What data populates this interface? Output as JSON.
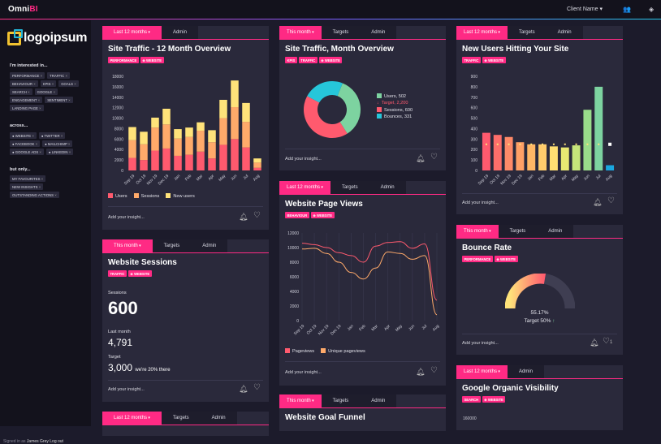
{
  "app": {
    "brand_a": "Omni",
    "brand_b": "BI",
    "client": "Client Name",
    "signed_prefix": "Signed in as",
    "signed_name": "James Grey",
    "logout": "Log out"
  },
  "icons": {
    "caret": "caret-down-icon",
    "users": "users-icon",
    "layers": "layers-icon",
    "bell": "bell-icon",
    "heart": "heart-icon"
  },
  "sidebar": {
    "logo": "logoipsum",
    "interested_heading": "I'm interested in...",
    "interested": [
      "PERFORMANCE",
      "TRAFFIC",
      "BEHAVIOUR",
      "KPIS",
      "GOALS",
      "SEARCH",
      "GOOGLE",
      "ENGAGEMENT",
      "SENTIMENT",
      "LANDING PAGE"
    ],
    "across_heading": "across...",
    "across": [
      "WEBSITE",
      "TWITTER",
      "FACEBOOK",
      "MAILCHIMP",
      "GOOGLE ADS",
      "LINKEDIN"
    ],
    "butonly_heading": "but only...",
    "butonly": [
      "MY FAVOURITES",
      "NEW INSIGHTS",
      "OUTSTANDING ACTIONS"
    ]
  },
  "common": {
    "add_insight": "Add your insight...",
    "tab_targets": "Targets",
    "tab_admin": "Admin",
    "tab_last12": "Last 12 months",
    "tab_thismonth": "This month"
  },
  "colors": {
    "accent": "#ff2a84",
    "bg": "#1c1b2b",
    "card": "#2a293b",
    "red": "#ff5a6e",
    "orange": "#ffaa6a",
    "yellow": "#ffe37a",
    "green": "#7dd3a0",
    "teal": "#26c6da",
    "blue": "#1aa7e0"
  },
  "cards": {
    "traffic12": {
      "title": "Site Traffic - 12 Month Overview",
      "tags": [
        "PERFORMANCE",
        "WEBSITE"
      ],
      "legend": [
        "Users",
        "Sessions",
        "New users"
      ]
    },
    "trafficMonth": {
      "title": "Site Traffic, Month Overview",
      "tags": [
        "KPIS",
        "TRAFFIC",
        "WEBSITE"
      ],
      "legend": [
        "Users, 502",
        "Target, 2,200",
        "Sessions, 600",
        "Bounces, 331"
      ]
    },
    "newUsers": {
      "title": "New Users Hitting Your Site",
      "tags": [
        "TRAFFIC",
        "WEBSITE"
      ]
    },
    "sessions": {
      "title": "Website Sessions",
      "tags": [
        "TRAFFIC",
        "WEBSITE"
      ],
      "sessions_label": "Sessions",
      "sessions_value": "600",
      "last_label": "Last month",
      "last_value": "4,791",
      "target_label": "Target",
      "target_value": "3,000",
      "target_note": "we're 20% there"
    },
    "pageViews": {
      "title": "Website Page Views",
      "tags": [
        "BEHAVIOUR",
        "WEBSITE"
      ],
      "legend": [
        "Pageviews",
        "Unique pageviews"
      ]
    },
    "bounce": {
      "title": "Bounce Rate",
      "tags": [
        "PERFORMANCE",
        "WEBSITE"
      ],
      "value": "55.17%",
      "target": "Target 50%"
    },
    "organic": {
      "title": "Google Organic Visibility",
      "tags": [
        "SEARCH",
        "WEBSITE"
      ],
      "ytick": "160000"
    },
    "funnel": {
      "title": "Website Goal Funnel"
    }
  },
  "chart_data": [
    {
      "type": "bar",
      "title": "Site Traffic - 12 Month Overview",
      "stacked": true,
      "categories": [
        "Sep 19",
        "Oct 19",
        "Nov 19",
        "Dec 19",
        "Jan",
        "Feb",
        "Mar",
        "Apr",
        "May",
        "Jun",
        "Jul",
        "Aug"
      ],
      "ylim": [
        0,
        18000
      ],
      "yticks": [
        0,
        2000,
        4000,
        6000,
        8000,
        10000,
        12000,
        14000,
        16000,
        18000
      ],
      "series": [
        {
          "name": "Users",
          "color": "#ff5a6e",
          "values": [
            2400,
            2000,
            3800,
            4200,
            2800,
            3000,
            3600,
            2300,
            4900,
            6000,
            4400,
            500
          ]
        },
        {
          "name": "Sessions",
          "color": "#ffaa6a",
          "values": [
            3400,
            3000,
            4400,
            4600,
            3300,
            3400,
            4000,
            3100,
            5100,
            6100,
            4900,
            1000
          ]
        },
        {
          "name": "New users",
          "color": "#ffe37a",
          "values": [
            2500,
            2400,
            1900,
            3000,
            1800,
            1800,
            1600,
            2300,
            3500,
            5100,
            3600,
            800
          ]
        }
      ]
    },
    {
      "type": "pie",
      "title": "Site Traffic, Month Overview",
      "donut": true,
      "series": [
        {
          "name": "Users",
          "value": 502,
          "color": "#7dd3a0"
        },
        {
          "name": "Sessions",
          "value": 600,
          "color": "#ff5a6e"
        },
        {
          "name": "Bounces",
          "value": 331,
          "color": "#26c6da"
        }
      ],
      "target": {
        "name": "Target",
        "value": 2200,
        "color": "#ff5a6e"
      }
    },
    {
      "type": "bar",
      "title": "New Users Hitting Your Site",
      "categories": [
        "Sep 19",
        "Oct 19",
        "Nov 19",
        "Dec 19",
        "Jan",
        "Feb",
        "Mar",
        "Apr",
        "May",
        "Jun",
        "Jul",
        "Aug"
      ],
      "ylim": [
        0,
        900
      ],
      "yticks": [
        0,
        100,
        200,
        300,
        400,
        500,
        600,
        700,
        800,
        900
      ],
      "values": [
        360,
        340,
        320,
        270,
        250,
        250,
        230,
        220,
        240,
        580,
        390,
        50
      ],
      "colors": [
        "#ff5a6e",
        "#ff6e6a",
        "#ff8a68",
        "#ffa066",
        "#ffb765",
        "#ffcc6c",
        "#ffdf72",
        "#e9e872",
        "#c6e57a",
        "#99dc8a",
        "#5cd3a0",
        "#1aa7e0"
      ],
      "highlight": {
        "index": 10,
        "value": 800,
        "color": "#7dd3a0"
      },
      "target_line": 250
    },
    {
      "type": "line",
      "title": "Website Page Views",
      "categories": [
        "Sep 19",
        "Oct 19",
        "Nov 19",
        "Dec 19",
        "Jan",
        "Feb",
        "Mar",
        "Apr",
        "May",
        "Jun",
        "Jul",
        "Aug"
      ],
      "ylim": [
        0,
        12000
      ],
      "yticks": [
        0,
        2000,
        4000,
        6000,
        8000,
        10000,
        12000
      ],
      "series": [
        {
          "name": "Pageviews",
          "color": "#ff5a6e",
          "values": [
            10600,
            10400,
            10000,
            9300,
            8900,
            8000,
            10200,
            10700,
            10800,
            9900,
            10500,
            2800
          ]
        },
        {
          "name": "Unique pageviews",
          "color": "#ffaa6a",
          "values": [
            9800,
            9900,
            9200,
            8000,
            6600,
            5700,
            7200,
            9400,
            9200,
            8400,
            8900,
            800
          ]
        }
      ]
    }
  ]
}
